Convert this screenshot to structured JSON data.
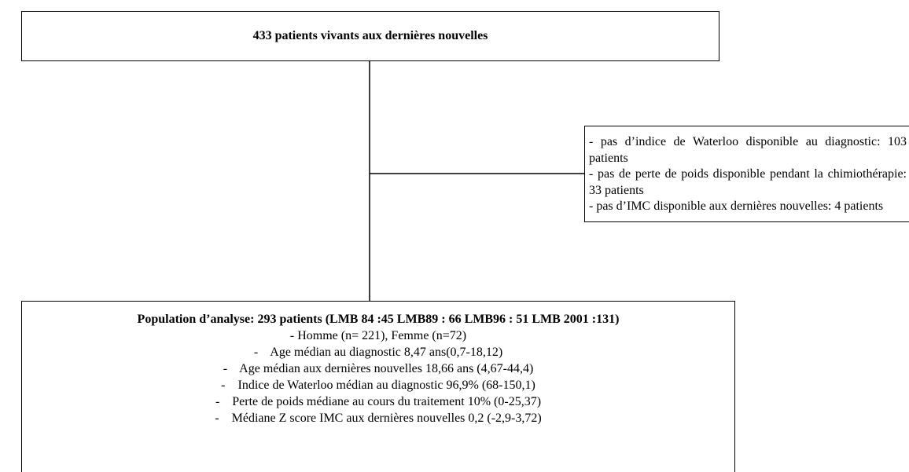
{
  "top": {
    "title": "433 patients vivants aux dernières nouvelles"
  },
  "exclusions": {
    "lines": [
      "- pas d’indice de Waterloo disponible au diagnostic: 103 patients",
      "- pas de perte de poids disponible pendant la chimiothérapie: 33 patients",
      "- pas d’IMC disponible aux dernières nouvelles: 4 patients"
    ]
  },
  "population": {
    "title": "Population d’analyse: 293 patients (LMB 84 :45 LMB89 : 66  LMB96 : 51 LMB 2001 :131)",
    "items": [
      "- Homme (n= 221), Femme (n=72)",
      "-    Age médian au diagnostic 8,47 ans(0,7-18,12)",
      "-    Age médian aux dernières nouvelles 18,66 ans (4,67-44,4)",
      "-    Indice de Waterloo médian au diagnostic 96,9% (68-150,1)",
      "-    Perte de poids médiane au cours du traitement 10% (0-25,37)",
      "-    Médiane Z score IMC aux dernières nouvelles 0,2 (-2,9-3,72)"
    ]
  }
}
